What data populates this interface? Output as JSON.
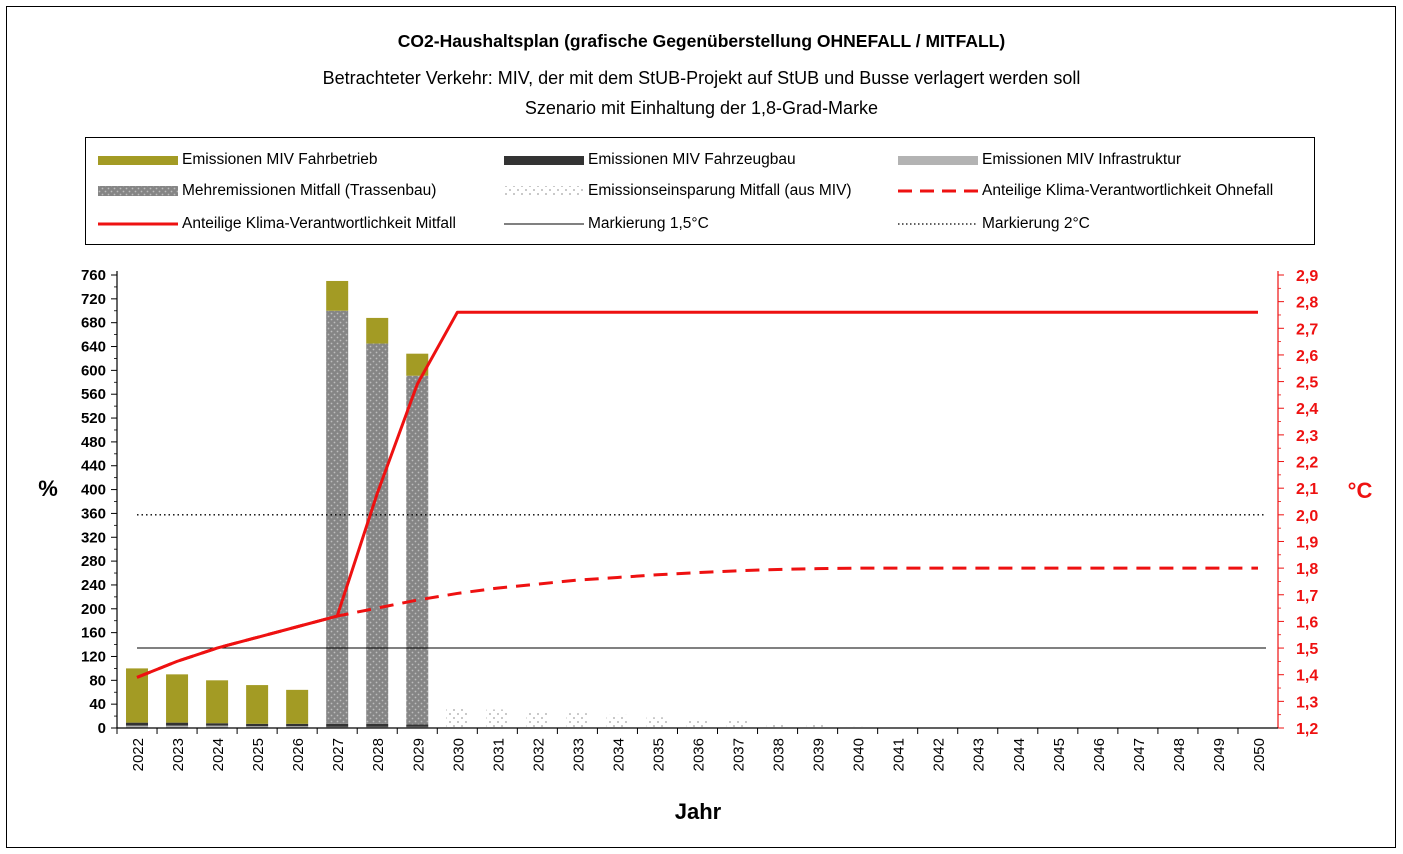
{
  "title": "CO2-Haushaltsplan (grafische Gegenüberstellung OHNEFALL / MITFALL)",
  "subtitle1": "Betrachteter Verkehr: MIV, der mit dem StUB-Projekt auf StUB und Busse verlagert werden soll",
  "subtitle2": "Szenario mit Einhaltung der 1,8-Grad-Marke",
  "legend": [
    {
      "label": "Emissionen MIV Fahrbetrieb",
      "symbol": "bar-olive"
    },
    {
      "label": "Emissionen MIV Fahrzeugbau",
      "symbol": "bar-dark"
    },
    {
      "label": "Emissionen MIV Infrastruktur",
      "symbol": "bar-lightgray"
    },
    {
      "label": "Mehremissionen Mitfall (Trassenbau)",
      "symbol": "bar-dotted-gray"
    },
    {
      "label": "Emissionseinsparung Mitfall (aus MIV)",
      "symbol": "bar-dotted-white"
    },
    {
      "label": "Anteilige Klima-Verantwortlichkeit Ohnefall",
      "symbol": "line-red-dashed"
    },
    {
      "label": "Anteilige Klima-Verantwortlichkeit Mitfall",
      "symbol": "line-red-solid"
    },
    {
      "label": "Markierung 1,5°C",
      "symbol": "line-black-thin"
    },
    {
      "label": "Markierung 2°C",
      "symbol": "line-black-dotted"
    }
  ],
  "colors": {
    "olive": "#a39b24",
    "dark": "#333333",
    "lightgray": "#b3b3b3",
    "dotted_gray": "#8a8a8a",
    "red": "#ee1111",
    "black": "#000000"
  },
  "chart_data": {
    "type": "bar",
    "xlabel": "Jahr",
    "ylabel": "%",
    "y2label": "°C",
    "ylim": [
      0,
      760
    ],
    "y2lim": [
      1.2,
      2.9
    ],
    "y_ticks": [
      "0",
      "40",
      "80",
      "120",
      "160",
      "200",
      "240",
      "280",
      "320",
      "360",
      "400",
      "440",
      "480",
      "520",
      "560",
      "600",
      "640",
      "680",
      "720",
      "760"
    ],
    "y2_ticks": [
      "1,2",
      "1,3",
      "1,4",
      "1,5",
      "1,6",
      "1,7",
      "1,8",
      "1,9",
      "2,0",
      "2,1",
      "2,2",
      "2,3",
      "2,4",
      "2,5",
      "2,6",
      "2,7",
      "2,8",
      "2,9"
    ],
    "categories": [
      "2022",
      "2023",
      "2024",
      "2025",
      "2026",
      "2027",
      "2028",
      "2029",
      "2030",
      "2031",
      "2032",
      "2033",
      "2034",
      "2035",
      "2036",
      "2037",
      "2038",
      "2039",
      "2040",
      "2041",
      "2042",
      "2043",
      "2044",
      "2045",
      "2046",
      "2047",
      "2048",
      "2049",
      "2050"
    ],
    "series": [
      {
        "name": "Emissionen MIV Infrastruktur",
        "values": [
          4,
          4,
          4,
          3,
          3,
          2,
          2,
          2,
          0,
          0,
          0,
          0,
          0,
          0,
          0,
          0,
          0,
          0,
          0,
          0,
          0,
          0,
          0,
          0,
          0,
          0,
          0,
          0,
          0
        ]
      },
      {
        "name": "Emissionen MIV Fahrzeugbau",
        "values": [
          5,
          5,
          4,
          4,
          4,
          5,
          5,
          4,
          0,
          0,
          0,
          0,
          0,
          0,
          0,
          0,
          0,
          0,
          0,
          0,
          0,
          0,
          0,
          0,
          0,
          0,
          0,
          0,
          0
        ]
      },
      {
        "name": "Mehremissionen Mitfall (Trassenbau)",
        "values": [
          0,
          0,
          0,
          0,
          0,
          693,
          638,
          585,
          0,
          0,
          0,
          0,
          0,
          0,
          0,
          0,
          0,
          0,
          0,
          0,
          0,
          0,
          0,
          0,
          0,
          0,
          0,
          0,
          0
        ]
      },
      {
        "name": "Emissionen MIV Fahrbetrieb",
        "values": [
          91,
          81,
          72,
          65,
          57,
          50,
          43,
          37,
          0,
          0,
          0,
          0,
          0,
          0,
          0,
          0,
          0,
          0,
          0,
          0,
          0,
          0,
          0,
          0,
          0,
          0,
          0,
          0,
          0
        ]
      },
      {
        "name": "Emissionseinsparung Mitfall (aus MIV)",
        "values": [
          0,
          0,
          0,
          0,
          0,
          0,
          0,
          0,
          34,
          31,
          28,
          25,
          22,
          18,
          15,
          12,
          8,
          5,
          2,
          1,
          1,
          1,
          1,
          1,
          1,
          1,
          1,
          1,
          1
        ]
      }
    ],
    "lines": [
      {
        "name": "Anteilige Klima-Verantwortlichkeit Ohnefall",
        "axis": "y2",
        "values": [
          1.39,
          1.45,
          1.5,
          1.54,
          1.58,
          1.62,
          1.65,
          1.68,
          1.705,
          1.725,
          1.74,
          1.755,
          1.765,
          1.775,
          1.783,
          1.79,
          1.795,
          1.798,
          1.8,
          1.8,
          1.8,
          1.8,
          1.8,
          1.8,
          1.8,
          1.8,
          1.8,
          1.8,
          1.8
        ]
      },
      {
        "name": "Anteilige Klima-Verantwortlichkeit Mitfall",
        "axis": "y2",
        "values": [
          1.39,
          1.45,
          1.5,
          1.54,
          1.58,
          1.62,
          2.08,
          2.49,
          2.76,
          2.76,
          2.76,
          2.76,
          2.76,
          2.76,
          2.76,
          2.76,
          2.76,
          2.76,
          2.76,
          2.76,
          2.76,
          2.76,
          2.76,
          2.76,
          2.76,
          2.76,
          2.76,
          2.76,
          2.76
        ]
      }
    ],
    "markers": [
      {
        "name": "Markierung 1,5°C",
        "axis": "y2",
        "value": 1.5
      },
      {
        "name": "Markierung 2°C",
        "axis": "y2",
        "value": 2.0
      }
    ]
  }
}
